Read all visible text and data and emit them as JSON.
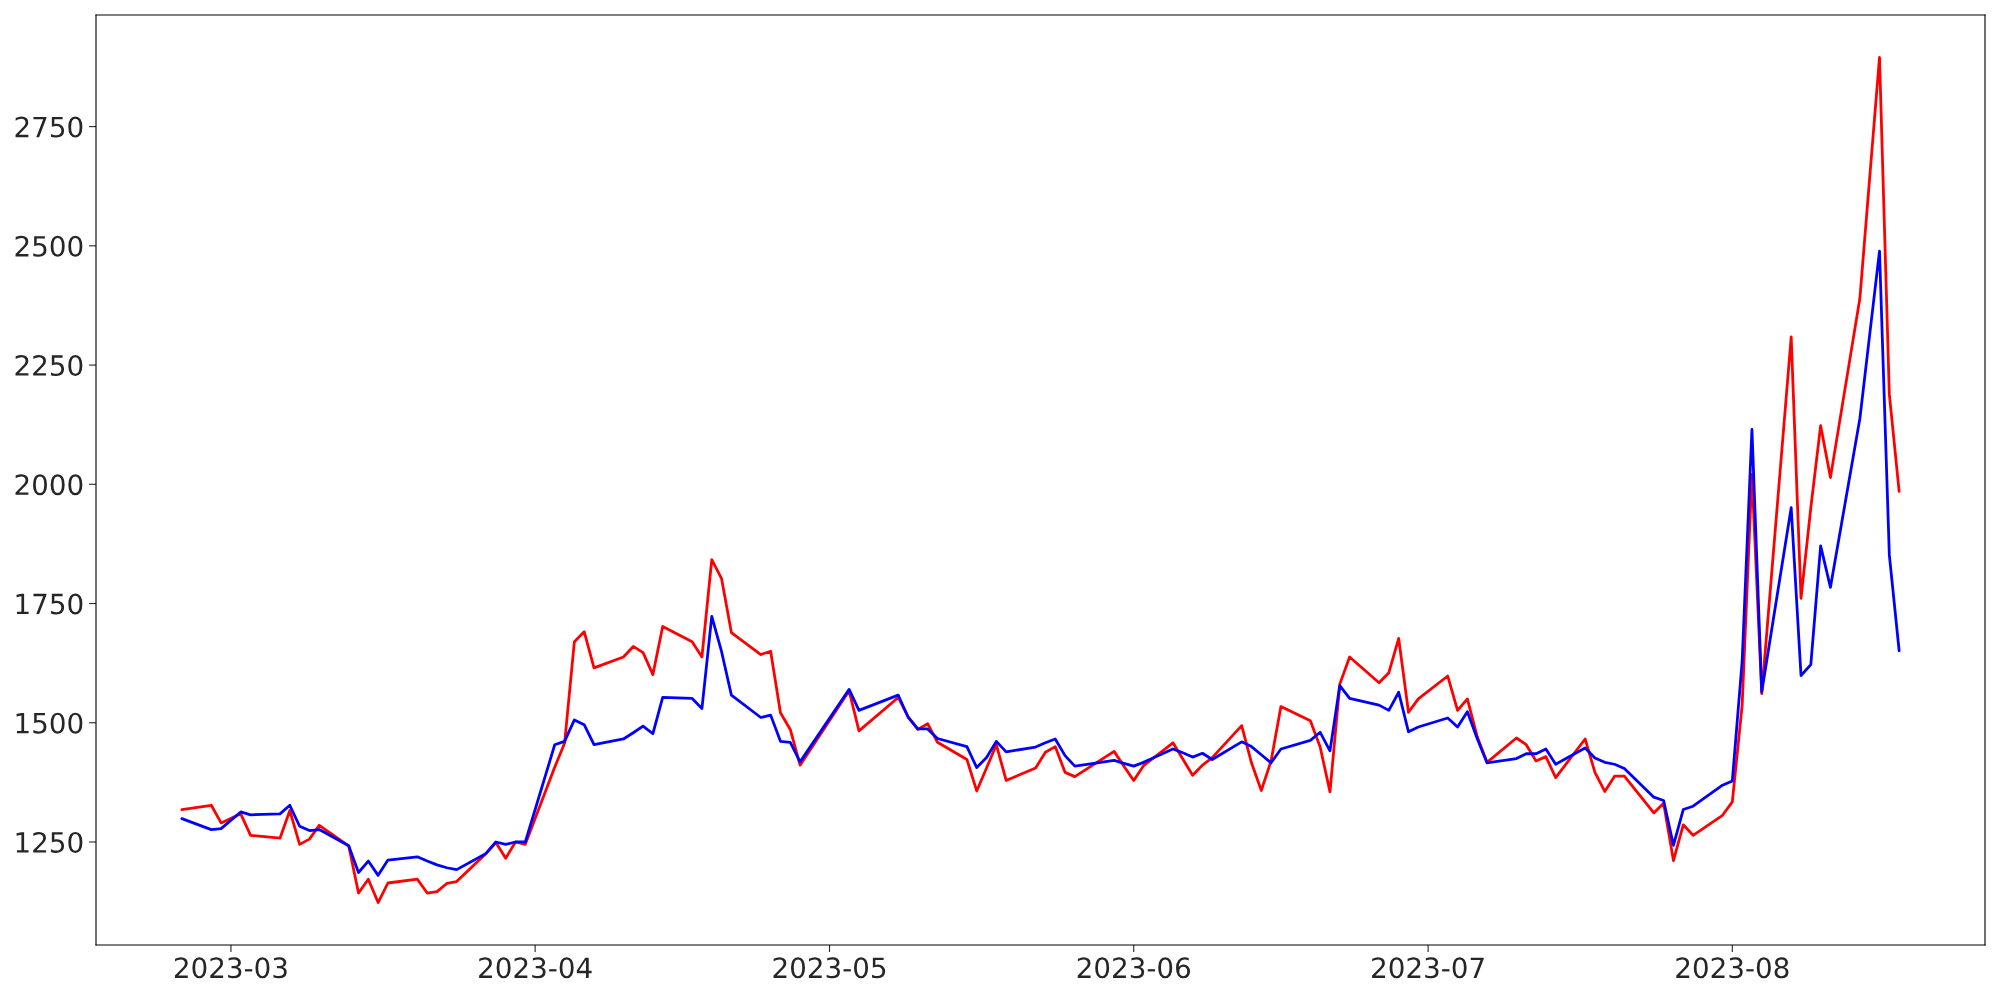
{
  "chart_data": {
    "type": "line",
    "x": [
      "2023-02-24",
      "2023-02-27",
      "2023-02-28",
      "2023-03-02",
      "2023-03-03",
      "2023-03-06",
      "2023-03-07",
      "2023-03-08",
      "2023-03-09",
      "2023-03-10",
      "2023-03-13",
      "2023-03-14",
      "2023-03-15",
      "2023-03-16",
      "2023-03-17",
      "2023-03-20",
      "2023-03-21",
      "2023-03-22",
      "2023-03-23",
      "2023-03-24",
      "2023-03-27",
      "2023-03-28",
      "2023-03-29",
      "2023-03-30",
      "2023-03-31",
      "2023-04-03",
      "2023-04-04",
      "2023-04-05",
      "2023-04-06",
      "2023-04-07",
      "2023-04-10",
      "2023-04-11",
      "2023-04-12",
      "2023-04-13",
      "2023-04-14",
      "2023-04-17",
      "2023-04-18",
      "2023-04-19",
      "2023-04-20",
      "2023-04-21",
      "2023-04-24",
      "2023-04-25",
      "2023-04-26",
      "2023-04-27",
      "2023-04-28",
      "2023-05-03",
      "2023-05-04",
      "2023-05-08",
      "2023-05-09",
      "2023-05-10",
      "2023-05-11",
      "2023-05-12",
      "2023-05-15",
      "2023-05-16",
      "2023-05-17",
      "2023-05-18",
      "2023-05-19",
      "2023-05-22",
      "2023-05-23",
      "2023-05-24",
      "2023-05-25",
      "2023-05-26",
      "2023-05-30",
      "2023-05-31",
      "2023-06-01",
      "2023-06-02",
      "2023-06-05",
      "2023-06-06",
      "2023-06-07",
      "2023-06-08",
      "2023-06-09",
      "2023-06-12",
      "2023-06-13",
      "2023-06-14",
      "2023-06-15",
      "2023-06-16",
      "2023-06-19",
      "2023-06-20",
      "2023-06-21",
      "2023-06-22",
      "2023-06-23",
      "2023-06-26",
      "2023-06-27",
      "2023-06-28",
      "2023-06-29",
      "2023-06-30",
      "2023-07-03",
      "2023-07-04",
      "2023-07-05",
      "2023-07-06",
      "2023-07-07",
      "2023-07-10",
      "2023-07-11",
      "2023-07-12",
      "2023-07-13",
      "2023-07-14",
      "2023-07-17",
      "2023-07-18",
      "2023-07-19",
      "2023-07-20",
      "2023-07-21",
      "2023-07-24",
      "2023-07-25",
      "2023-07-26",
      "2023-07-27",
      "2023-07-28",
      "2023-07-31",
      "2023-08-01",
      "2023-08-02",
      "2023-08-03",
      "2023-08-04",
      "2023-08-07",
      "2023-08-08",
      "2023-08-09",
      "2023-08-10",
      "2023-08-11",
      "2023-08-14",
      "2023-08-15",
      "2023-08-16",
      "2023-08-17",
      "2023-08-18"
    ],
    "series": [
      {
        "color": "#ff0000",
        "values": [
          1318,
          1327,
          1290,
          1309,
          1264,
          1258,
          1316,
          1245,
          1256,
          1285,
          1242,
          1143,
          1172,
          1123,
          1164,
          1172,
          1143,
          1146,
          1163,
          1167,
          1226,
          1249,
          1216,
          1250,
          1245,
          1407,
          1457,
          1670,
          1691,
          1615,
          1638,
          1660,
          1647,
          1601,
          1702,
          1670,
          1638,
          1842,
          1802,
          1689,
          1643,
          1650,
          1521,
          1486,
          1411,
          1567,
          1483,
          1553,
          1513,
          1486,
          1498,
          1459,
          1423,
          1357,
          1405,
          1454,
          1379,
          1405,
          1438,
          1450,
          1396,
          1387,
          1440,
          1409,
          1379,
          1410,
          1458,
          1424,
          1390,
          1411,
          1427,
          1494,
          1416,
          1358,
          1420,
          1534,
          1504,
          1449,
          1355,
          1581,
          1638,
          1584,
          1605,
          1677,
          1522,
          1550,
          1598,
          1526,
          1550,
          1471,
          1417,
          1468,
          1454,
          1420,
          1429,
          1385,
          1466,
          1396,
          1356,
          1388,
          1388,
          1311,
          1331,
          1211,
          1286,
          1264,
          1306,
          1334,
          1536,
          2021,
          1561,
          2309,
          1761,
          1951,
          2123,
          2014,
          2390,
          2643,
          2895,
          2189,
          1985
        ]
      },
      {
        "color": "#0000ff",
        "values": [
          1299,
          1276,
          1278,
          1313,
          1307,
          1309,
          1327,
          1283,
          1274,
          1276,
          1242,
          1186,
          1210,
          1180,
          1212,
          1219,
          1210,
          1202,
          1196,
          1192,
          1226,
          1250,
          1245,
          1250,
          1250,
          1454,
          1461,
          1506,
          1496,
          1454,
          1466,
          1479,
          1493,
          1477,
          1553,
          1551,
          1530,
          1723,
          1649,
          1558,
          1511,
          1516,
          1461,
          1459,
          1418,
          1570,
          1526,
          1558,
          1512,
          1487,
          1487,
          1467,
          1450,
          1406,
          1427,
          1461,
          1439,
          1449,
          1458,
          1466,
          1431,
          1409,
          1421,
          1415,
          1409,
          1417,
          1445,
          1437,
          1428,
          1436,
          1423,
          1460,
          1450,
          1433,
          1416,
          1445,
          1463,
          1480,
          1441,
          1578,
          1551,
          1537,
          1526,
          1564,
          1481,
          1491,
          1510,
          1491,
          1523,
          1467,
          1416,
          1425,
          1435,
          1435,
          1445,
          1413,
          1447,
          1426,
          1417,
          1413,
          1404,
          1344,
          1337,
          1243,
          1318,
          1325,
          1369,
          1378,
          1628,
          2115,
          1565,
          1951,
          1599,
          1622,
          1871,
          1784,
          2138,
          2314,
          2489,
          1852,
          1651
        ]
      }
    ],
    "xlim": [
      "2023-02-15T06:00",
      "2023-08-26T18:00"
    ],
    "xticks": [
      {
        "value": "2023-03-01",
        "label": "2023-03"
      },
      {
        "value": "2023-04-01",
        "label": "2023-04"
      },
      {
        "value": "2023-05-01",
        "label": "2023-05"
      },
      {
        "value": "2023-06-01",
        "label": "2023-06"
      },
      {
        "value": "2023-07-01",
        "label": "2023-07"
      },
      {
        "value": "2023-08-01",
        "label": "2023-08"
      }
    ],
    "ylim": [
      1034,
      2984
    ],
    "yticks": [
      1250,
      1500,
      1750,
      2000,
      2250,
      2500,
      2750
    ],
    "grid": false,
    "legend": false,
    "line_style": "solid"
  }
}
